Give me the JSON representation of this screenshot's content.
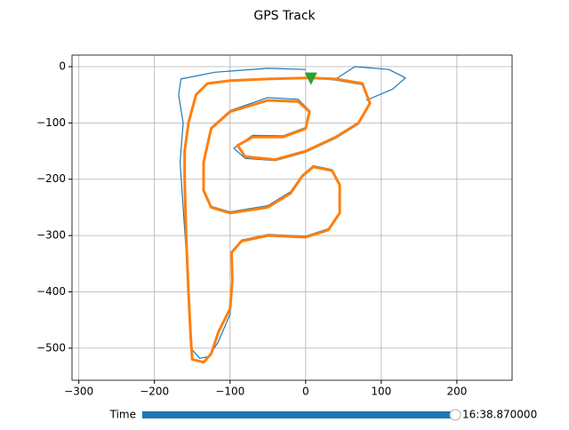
{
  "chart_data": {
    "type": "line",
    "title": "GPS Track",
    "xlim": [
      -309,
      273
    ],
    "ylim": [
      -557,
      20.5
    ],
    "xticks": [
      {
        "value": -300,
        "label": "−300"
      },
      {
        "value": -200,
        "label": "−200"
      },
      {
        "value": -100,
        "label": "−100"
      },
      0,
      100,
      200
    ],
    "yticks": [
      0,
      {
        "value": -100,
        "label": "−100"
      },
      {
        "value": -200,
        "label": "−200"
      },
      {
        "value": -300,
        "label": "−300"
      },
      {
        "value": -400,
        "label": "−400"
      },
      {
        "value": -500,
        "label": "−500"
      }
    ],
    "grid": true,
    "series": [
      {
        "color": "#1f77b4",
        "x": [
          0,
          -50,
          -120,
          -165,
          -168,
          -162,
          -166,
          -162,
          -158,
          -155,
          -152,
          -140,
          -128,
          -116,
          -100,
          -97,
          -98,
          -85,
          -50,
          0,
          30,
          45,
          45,
          35,
          10,
          -5,
          -20,
          -50,
          -100,
          -125,
          -135,
          -135,
          -125,
          -100,
          -50,
          -10,
          5,
          0,
          -30,
          -70,
          -95,
          -80,
          -40,
          0,
          40,
          70,
          85,
          75,
          40,
          7,
          40,
          65,
          110,
          132,
          115,
          80
        ],
        "values": [
          -5,
          -3,
          -10,
          -22,
          -50,
          -100,
          -170,
          -250,
          -330,
          -420,
          -500,
          -518,
          -515,
          -490,
          -440,
          -380,
          -330,
          -308,
          -298,
          -301,
          -288,
          -258,
          -208,
          -183,
          -176,
          -193,
          -222,
          -247,
          -258,
          -248,
          -218,
          -168,
          -108,
          -78,
          -55,
          -58,
          -78,
          -108,
          -123,
          -122,
          -145,
          -163,
          -167,
          -152,
          -127,
          -102,
          -67,
          -32,
          -24,
          -20,
          -22,
          0,
          -5,
          -20,
          -40,
          -60
        ]
      },
      {
        "color": "#ff7f0e",
        "x": [
          7,
          0,
          -50,
          -100,
          -130,
          -145,
          -155,
          -160,
          -160,
          -158,
          -155,
          -152,
          -150,
          -135,
          -125,
          -115,
          -100,
          -97,
          -98,
          -85,
          -50,
          0,
          30,
          45,
          45,
          35,
          10,
          -5,
          -20,
          -50,
          -100,
          -125,
          -135,
          -135,
          -125,
          -100,
          -50,
          -10,
          5,
          0,
          -30,
          -70,
          -90,
          -80,
          -40,
          0,
          40,
          70,
          85,
          75,
          40,
          7
        ],
        "values": [
          -20,
          -20,
          -22,
          -25,
          -30,
          -50,
          -100,
          -150,
          -200,
          -300,
          -400,
          -480,
          -520,
          -525,
          -510,
          -470,
          -430,
          -380,
          -330,
          -310,
          -300,
          -303,
          -290,
          -260,
          -210,
          -185,
          -178,
          -195,
          -225,
          -250,
          -260,
          -250,
          -220,
          -170,
          -110,
          -80,
          -60,
          -62,
          -80,
          -110,
          -125,
          -125,
          -140,
          -160,
          -165,
          -150,
          -125,
          -100,
          -65,
          -30,
          -22,
          -20
        ]
      },
      {
        "color": "#2ca02c",
        "marker": true,
        "x": [
          7
        ],
        "values": [
          -20
        ]
      }
    ]
  },
  "slider": {
    "label": "Time",
    "value_label": "16:38.870000"
  }
}
